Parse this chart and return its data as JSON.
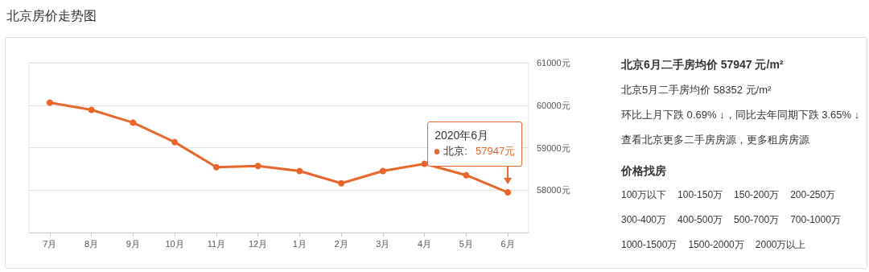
{
  "chart_data": [
    {
      "type": "line",
      "title": "北京房价走势图",
      "categories": [
        "7月",
        "8月",
        "9月",
        "10月",
        "11月",
        "12月",
        "1月",
        "2月",
        "3月",
        "4月",
        "5月",
        "6月"
      ],
      "series": [
        {
          "name": "北京:",
          "color": "#e8672a",
          "values": [
            60060,
            59890,
            59590,
            59130,
            58540,
            58570,
            58450,
            58160,
            58450,
            58620,
            58352,
            57947
          ]
        }
      ],
      "ylim": [
        57000,
        61000
      ],
      "yticks": [
        {
          "value": 57000,
          "label": null
        },
        {
          "value": 58000,
          "label": "58000元"
        },
        {
          "value": 59000,
          "label": "59000元"
        },
        {
          "value": 60000,
          "label": "60000元"
        },
        {
          "value": 61000,
          "label": "61000元"
        }
      ],
      "annotations": [
        "2020年6月",
        "57947元"
      ],
      "grid": "y",
      "legend": "right",
      "marker": "circle",
      "line_style": "solid"
    },
    {
      "type": "other",
      "title": "北京6月二手房均价 57947 元/m²",
      "annotations": [
        "北京5月二手房均价 58352 元/m²",
        "环比上月下跌 0.69% ↓，同比去年同期下跌 3.65% ↓",
        "查看北京更多二手房房源，更多租房房源"
      ],
      "subtitle": "价格找房",
      "categories": [
        "100万以下",
        "100-150万",
        "150-200万",
        "200-250万",
        "300-400万",
        "400-500万",
        "500-700万",
        "700-1000万",
        "1000-1500万",
        "1500-2000万",
        "2000万以上"
      ]
    }
  ]
}
